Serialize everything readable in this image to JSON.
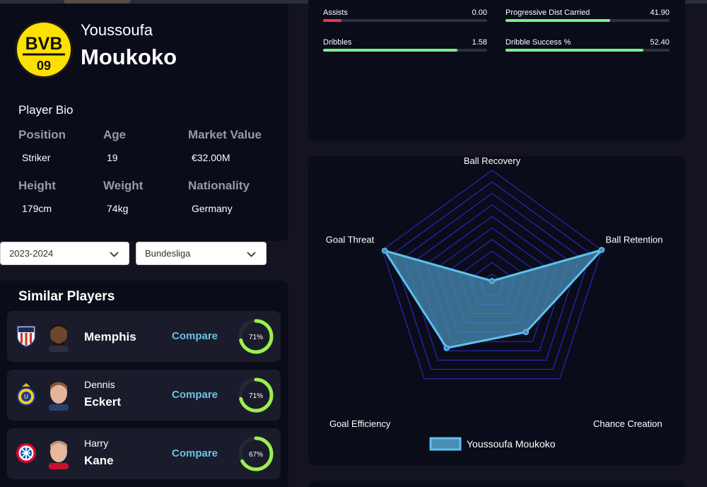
{
  "player": {
    "first_name": "Youssoufa",
    "last_name": "Moukoko",
    "club_badge": {
      "letters": "BVB",
      "year": "09"
    }
  },
  "bio": {
    "title": "Player Bio",
    "fields": [
      {
        "label": "Position",
        "value": "Striker"
      },
      {
        "label": "Age",
        "value": "19"
      },
      {
        "label": "Market Value",
        "value": "€32.00M"
      },
      {
        "label": "Height",
        "value": "179cm"
      },
      {
        "label": "Weight",
        "value": "74kg"
      },
      {
        "label": "Nationality",
        "value": "Germany"
      }
    ]
  },
  "filters": {
    "season": "2023-2024",
    "league": "Bundesliga"
  },
  "similar": {
    "title": "Similar Players",
    "compare_label": "Compare",
    "players": [
      {
        "first": "",
        "last": "Memphis",
        "score_label": "71%",
        "score": 0.71,
        "club": "atletico-crest-icon"
      },
      {
        "first": "Dennis",
        "last": "Eckert",
        "score_label": "71%",
        "score": 0.71,
        "club": "union-sg-crest-icon"
      },
      {
        "first": "Harry",
        "last": "Kane",
        "score_label": "67%",
        "score": 0.67,
        "club": "bayern-crest-icon"
      }
    ]
  },
  "stats": [
    {
      "label": "Assists",
      "value": "0.00",
      "fraction": 0.11,
      "color": "#e23b4b"
    },
    {
      "label": "Progressive Dist Carried",
      "value": "41.90",
      "fraction": 0.64,
      "color": "#7cf08a"
    },
    {
      "label": "Dribbles",
      "value": "1.58",
      "fraction": 0.82,
      "color": "#7cf08a"
    },
    {
      "label": "Dribble Success %",
      "value": "52.40",
      "fraction": 0.84,
      "color": "#7cf08a"
    }
  ],
  "chart_data": {
    "type": "radar",
    "axes": [
      "Ball Recovery",
      "Ball Retention",
      "Chance Creation",
      "Goal Efficiency",
      "Goal Threat"
    ],
    "range": [
      0,
      100
    ],
    "rings": 10,
    "series": [
      {
        "name": "Youssoufa Moukoko",
        "values": [
          4,
          100,
          50,
          67,
          98
        ]
      }
    ],
    "legend": "bottom-center",
    "colors": {
      "fill": "#4a8db5",
      "line": "#5dc2ef",
      "grid": "#2a2fd6"
    }
  },
  "colors": {
    "panel": "#0b0c19",
    "background": "#13141f",
    "accent_green": "#7cf08a",
    "accent_blue": "#6ec1e4",
    "badge_yellow": "#fde100"
  }
}
